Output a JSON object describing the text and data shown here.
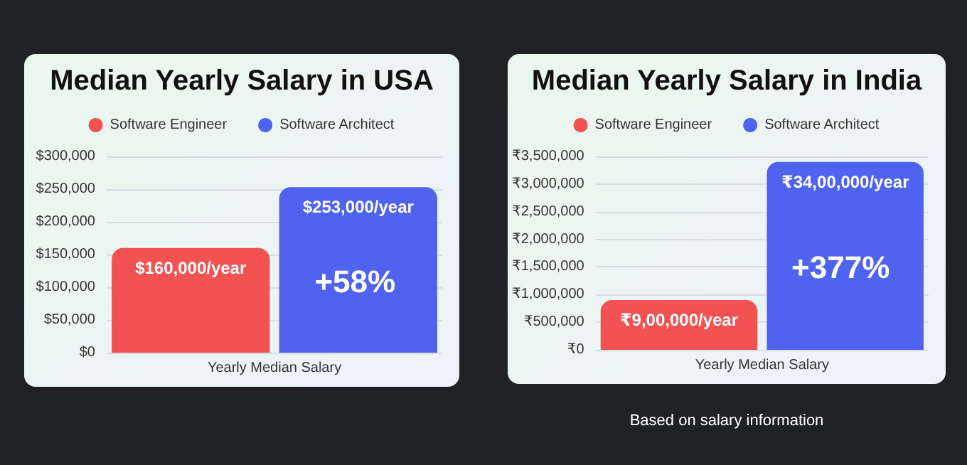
{
  "chart_data": [
    {
      "type": "bar",
      "title": "Median Yearly Salary in USA",
      "categories": [
        "Yearly Median Salary"
      ],
      "series": [
        {
          "name": "Software Engineer",
          "color": "#f25252",
          "values": [
            160000
          ],
          "value_labels": [
            "$160,000/year"
          ]
        },
        {
          "name": "Software Architect",
          "color": "#4f63f0",
          "values": [
            253000
          ],
          "value_labels": [
            "$253,000/year"
          ]
        }
      ],
      "ylim": [
        0,
        300000
      ],
      "yticks": [
        {
          "value": 0,
          "label": "$0"
        },
        {
          "value": 50000,
          "label": "$50,000"
        },
        {
          "value": 100000,
          "label": "$100,000"
        },
        {
          "value": 150000,
          "label": "$150,000"
        },
        {
          "value": 200000,
          "label": "$200,000"
        },
        {
          "value": 250000,
          "label": "$250,000"
        },
        {
          "value": 300000,
          "label": "$300,000"
        }
      ],
      "grid": "y",
      "legend": "top",
      "annotations": [
        "+58%"
      ]
    },
    {
      "type": "bar",
      "title": "Median Yearly Salary in India",
      "categories": [
        "Yearly Median Salary"
      ],
      "series": [
        {
          "name": "Software Engineer",
          "color": "#f25252",
          "values": [
            900000
          ],
          "value_labels": [
            "₹9,00,000/year"
          ]
        },
        {
          "name": "Software Architect",
          "color": "#4f63f0",
          "values": [
            3400000
          ],
          "value_labels": [
            "₹34,00,000/year"
          ]
        }
      ],
      "ylim": [
        0,
        3500000
      ],
      "yticks": [
        {
          "value": 0,
          "label": "₹0"
        },
        {
          "value": 500000,
          "label": "₹500,000"
        },
        {
          "value": 1000000,
          "label": "₹1,000,000"
        },
        {
          "value": 1500000,
          "label": "₹1,500,000"
        },
        {
          "value": 2000000,
          "label": "₹2,000,000"
        },
        {
          "value": 2500000,
          "label": "₹2,500,000"
        },
        {
          "value": 3000000,
          "label": "₹3,000,000"
        },
        {
          "value": 3500000,
          "label": "₹3,500,000"
        }
      ],
      "grid": "y",
      "legend": "top",
      "annotations": [
        "+377%",
        "Based on salary information"
      ]
    }
  ]
}
